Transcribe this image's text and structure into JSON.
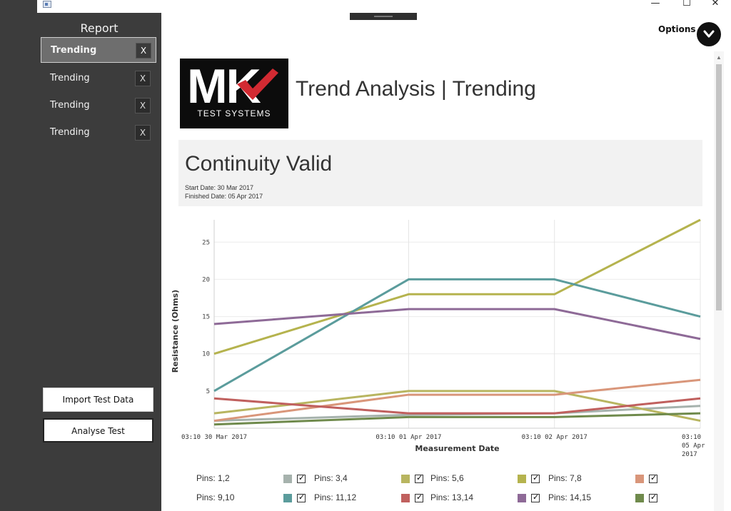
{
  "titlebar": {
    "minimize": "—",
    "maximize": "☐",
    "close": "✕"
  },
  "sidebar": {
    "title": "Report",
    "items": [
      {
        "label": "Trending",
        "close": "X",
        "active": true
      },
      {
        "label": "Trending",
        "close": "X",
        "active": false
      },
      {
        "label": "Trending",
        "close": "X",
        "active": false
      },
      {
        "label": "Trending",
        "close": "X",
        "active": false
      }
    ],
    "import_button": "Import Test Data",
    "analyse_button": "Analyse Test"
  },
  "header": {
    "options_label": "Options",
    "options_icon": "chevron-down-icon"
  },
  "logo": {
    "mk": "MK",
    "sub": "TEST SYSTEMS"
  },
  "report": {
    "title": "Trend Analysis | Trending",
    "test_name": "Continuity Valid",
    "start_date": "Start Date: 30 Mar 2017",
    "finished_date": "Finished Date: 05 Apr 2017"
  },
  "chart_data": {
    "type": "line",
    "xlabel": "Measurement Date",
    "ylabel": "Resistance (Ohms)",
    "x": [
      "03:10 30 Mar 2017",
      "03:10 01 Apr 2017",
      "03:10 02 Apr 2017",
      "03:10 05 Apr 2017"
    ],
    "x_tick_lines": [
      [
        "03:10 30 Mar 2017"
      ],
      [
        "03:10 01 Apr 2017"
      ],
      [
        "03:10 02 Apr 2017"
      ],
      [
        "03:10",
        "05 Apr",
        "2017"
      ]
    ],
    "yticks": [
      5,
      10,
      15,
      20,
      25
    ],
    "ylim": [
      0,
      28
    ],
    "grid": true,
    "legend": "bottom",
    "series": [
      {
        "name": "Pins: 1,2",
        "color": "#a6b2ad",
        "values": [
          1,
          1.8,
          2,
          3
        ]
      },
      {
        "name": "Pins: 3,4",
        "color": "#b8b560",
        "values": [
          2,
          5,
          5,
          1
        ]
      },
      {
        "name": "Pins: 5,6",
        "color": "#b5b34e",
        "values": [
          10,
          18,
          18,
          28
        ]
      },
      {
        "name": "Pins: 7,8",
        "color": "#d9967a",
        "values": [
          1,
          4.5,
          4.5,
          6.5
        ]
      },
      {
        "name": "Pins: 9,10",
        "color": "#5b9c9c",
        "values": [
          5,
          20,
          20,
          15
        ]
      },
      {
        "name": "Pins: 11,12",
        "color": "#c0605e",
        "values": [
          4,
          2,
          2,
          4
        ]
      },
      {
        "name": "Pins: 13,14",
        "color": "#8e6a97",
        "values": [
          14,
          16,
          16,
          12
        ]
      },
      {
        "name": "Pins: 14,15",
        "color": "#6f8a4c",
        "values": [
          0.5,
          1.5,
          1.5,
          2
        ]
      }
    ]
  }
}
